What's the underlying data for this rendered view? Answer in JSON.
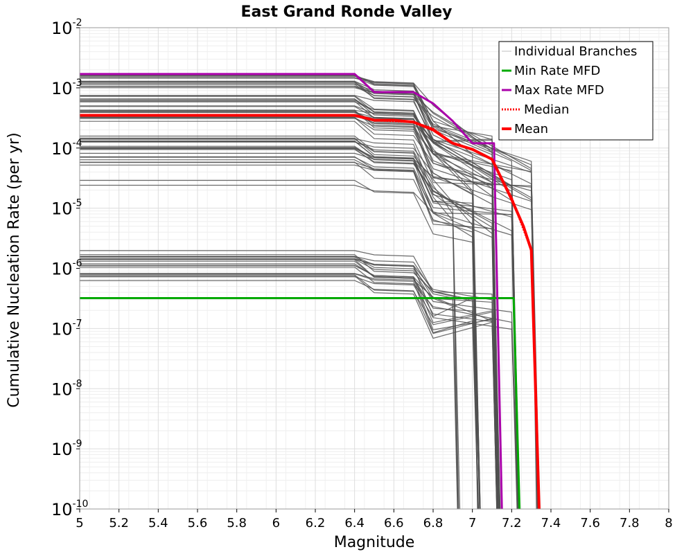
{
  "chart_data": {
    "type": "line",
    "title": "East Grand Ronde Valley",
    "xlabel": "Magnitude",
    "ylabel": "Cumulative Nucleation Rate (per yr)",
    "xlim": [
      5,
      8
    ],
    "ylim_exponent": [
      -10,
      -2
    ],
    "yscale": "log",
    "grid": true,
    "legend_position": "top-right",
    "x_ticks": [
      "5",
      "5.2",
      "5.4",
      "5.6",
      "5.8",
      "6",
      "6.2",
      "6.4",
      "6.6",
      "6.8",
      "7",
      "7.2",
      "7.4",
      "7.6",
      "7.8",
      "8"
    ],
    "y_ticks": [
      {
        "base": "10",
        "exp": "-2",
        "value": -2
      },
      {
        "base": "10",
        "exp": "-3",
        "value": -3
      },
      {
        "base": "10",
        "exp": "-4",
        "value": -4
      },
      {
        "base": "10",
        "exp": "-5",
        "value": -5
      },
      {
        "base": "10",
        "exp": "-6",
        "value": -6
      },
      {
        "base": "10",
        "exp": "-7",
        "value": -7
      },
      {
        "base": "10",
        "exp": "-8",
        "value": -8
      },
      {
        "base": "10",
        "exp": "-9",
        "value": -9
      },
      {
        "base": "10",
        "exp": "-10",
        "value": -10
      }
    ],
    "legend": [
      {
        "label": "Individual Branches",
        "color": "#bfbfbf",
        "style": "solid",
        "width": 1
      },
      {
        "label": "Min Rate MFD",
        "color": "#00aa00",
        "style": "solid",
        "width": 3
      },
      {
        "label": "Max Rate MFD",
        "color": "#aa00aa",
        "style": "solid",
        "width": 3
      },
      {
        "label": "Median",
        "color": "#ff0000",
        "style": "dotted",
        "width": 3
      },
      {
        "label": "Mean",
        "color": "#ff0000",
        "style": "solid",
        "width": 4
      }
    ],
    "series": [
      {
        "name": "Min Rate MFD",
        "color": "#00aa00",
        "width": 3,
        "points": [
          [
            5.0,
            3.2e-07
          ],
          [
            7.2,
            3.2e-07
          ],
          [
            7.21,
            3.2e-07
          ],
          [
            7.24,
            1e-10
          ]
        ]
      },
      {
        "name": "Max Rate MFD",
        "color": "#aa00aa",
        "width": 3,
        "points": [
          [
            5.0,
            0.0017
          ],
          [
            6.4,
            0.0017
          ],
          [
            6.5,
            0.00085
          ],
          [
            6.6,
            0.00085
          ],
          [
            6.7,
            0.00085
          ],
          [
            6.8,
            0.00055
          ],
          [
            6.9,
            0.00028
          ],
          [
            7.0,
            0.00012
          ],
          [
            7.1,
            0.00012
          ],
          [
            7.11,
            0.00012
          ],
          [
            7.15,
            1e-10
          ]
        ]
      },
      {
        "name": "Median",
        "color": "#ff0000",
        "width": 3,
        "dotted": true,
        "points": [
          [
            5.0,
            0.00035
          ],
          [
            6.4,
            0.00035
          ],
          [
            6.5,
            0.00029
          ],
          [
            6.7,
            0.00027
          ],
          [
            6.8,
            0.00021
          ],
          [
            6.9,
            0.00012
          ],
          [
            7.0,
            9.5e-05
          ],
          [
            7.1,
            6.5e-05
          ],
          [
            7.2,
            1.5e-05
          ],
          [
            7.3,
            2e-06
          ],
          [
            7.34,
            1e-10
          ]
        ]
      },
      {
        "name": "Mean",
        "color": "#ff0000",
        "width": 4,
        "points": [
          [
            5.0,
            0.00035
          ],
          [
            6.4,
            0.00035
          ],
          [
            6.5,
            0.00029
          ],
          [
            6.6,
            0.00029
          ],
          [
            6.7,
            0.00027
          ],
          [
            6.8,
            0.0002
          ],
          [
            6.9,
            0.00012
          ],
          [
            7.0,
            9.5e-05
          ],
          [
            7.1,
            6.5e-05
          ],
          [
            7.2,
            1.4e-05
          ],
          [
            7.26,
            5e-06
          ],
          [
            7.3,
            2e-06
          ],
          [
            7.34,
            1e-10
          ]
        ]
      }
    ],
    "branch_groups": [
      {
        "start_rate": 0.0014,
        "end_mag": 7.1,
        "end_rate": 0.0001,
        "count": 9
      },
      {
        "start_rate": 0.0011,
        "end_mag": 7.3,
        "end_rate": 4e-05,
        "count": 7
      },
      {
        "start_rate": 0.0007,
        "end_mag": 7.2,
        "end_rate": 3e-05,
        "count": 8
      },
      {
        "start_rate": 0.00045,
        "end_mag": 7.1,
        "end_rate": 2e-05,
        "count": 8
      },
      {
        "start_rate": 0.0003,
        "end_mag": 7.3,
        "end_rate": 1.5e-05,
        "count": 7
      },
      {
        "start_rate": 0.00014,
        "end_mag": 7.0,
        "end_rate": 8e-06,
        "count": 8
      },
      {
        "start_rate": 9e-05,
        "end_mag": 7.2,
        "end_rate": 6e-06,
        "count": 7
      },
      {
        "start_rate": 6e-05,
        "end_mag": 7.1,
        "end_rate": 5e-06,
        "count": 6
      },
      {
        "start_rate": 2.8e-05,
        "end_mag": 7.0,
        "end_rate": 4e-06,
        "count": 2
      },
      {
        "start_rate": 1.7e-06,
        "end_mag": 7.0,
        "end_rate": 2.5e-07,
        "count": 7
      },
      {
        "start_rate": 1.2e-06,
        "end_mag": 7.1,
        "end_rate": 2e-07,
        "count": 7
      },
      {
        "start_rate": 7e-07,
        "end_mag": 7.1,
        "end_rate": 1.5e-07,
        "count": 6
      }
    ]
  }
}
